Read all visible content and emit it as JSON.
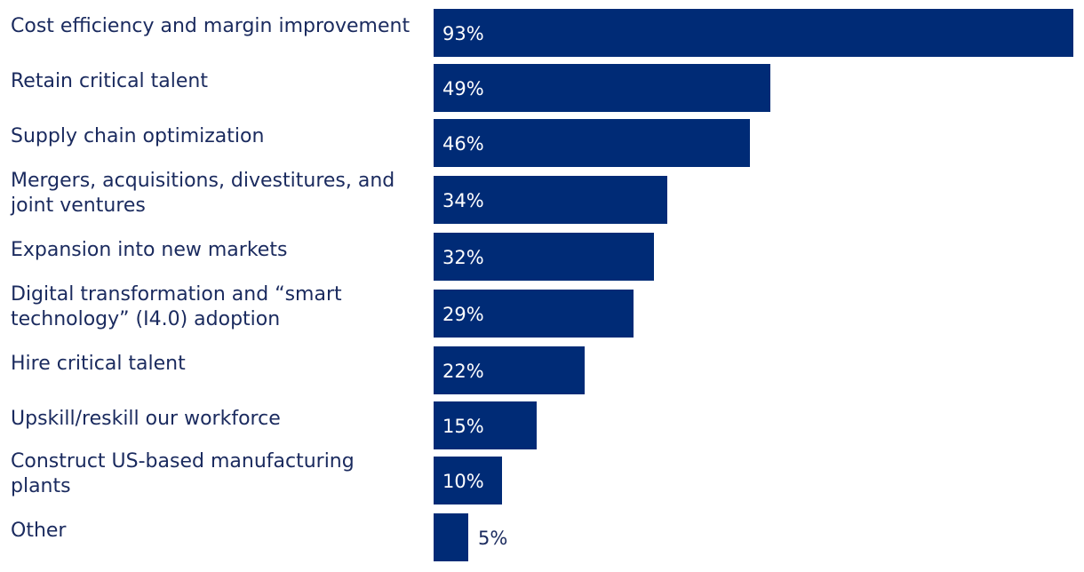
{
  "chart_data": {
    "type": "bar",
    "orientation": "horizontal",
    "title": "",
    "xlabel": "",
    "ylabel": "",
    "xlim": [
      0,
      93
    ],
    "grid": false,
    "legend": "none",
    "bar_color": "#002b76",
    "label_color_inside": "#ffffff",
    "label_color_outside": "#1a2a5e",
    "categories": [
      [
        "Cost efficiency and margin improvement"
      ],
      [
        "Retain critical talent"
      ],
      [
        "Supply chain optimization"
      ],
      [
        "Mergers, acquisitions, divestitures, and",
        "joint ventures"
      ],
      [
        "Expansion into new markets"
      ],
      [
        "Digital transformation and “smart",
        "technology” (I4.0) adoption"
      ],
      [
        "Hire critical talent"
      ],
      [
        "Upskill/reskill our workforce"
      ],
      [
        "Construct US-based manufacturing",
        "plants"
      ],
      [
        "Other"
      ]
    ],
    "values": [
      93,
      49,
      46,
      34,
      32,
      29,
      22,
      15,
      10,
      5
    ],
    "value_labels": [
      "93%",
      "49%",
      "46%",
      "34%",
      "32%",
      "29%",
      "22%",
      "15%",
      "10%",
      "5%"
    ]
  }
}
